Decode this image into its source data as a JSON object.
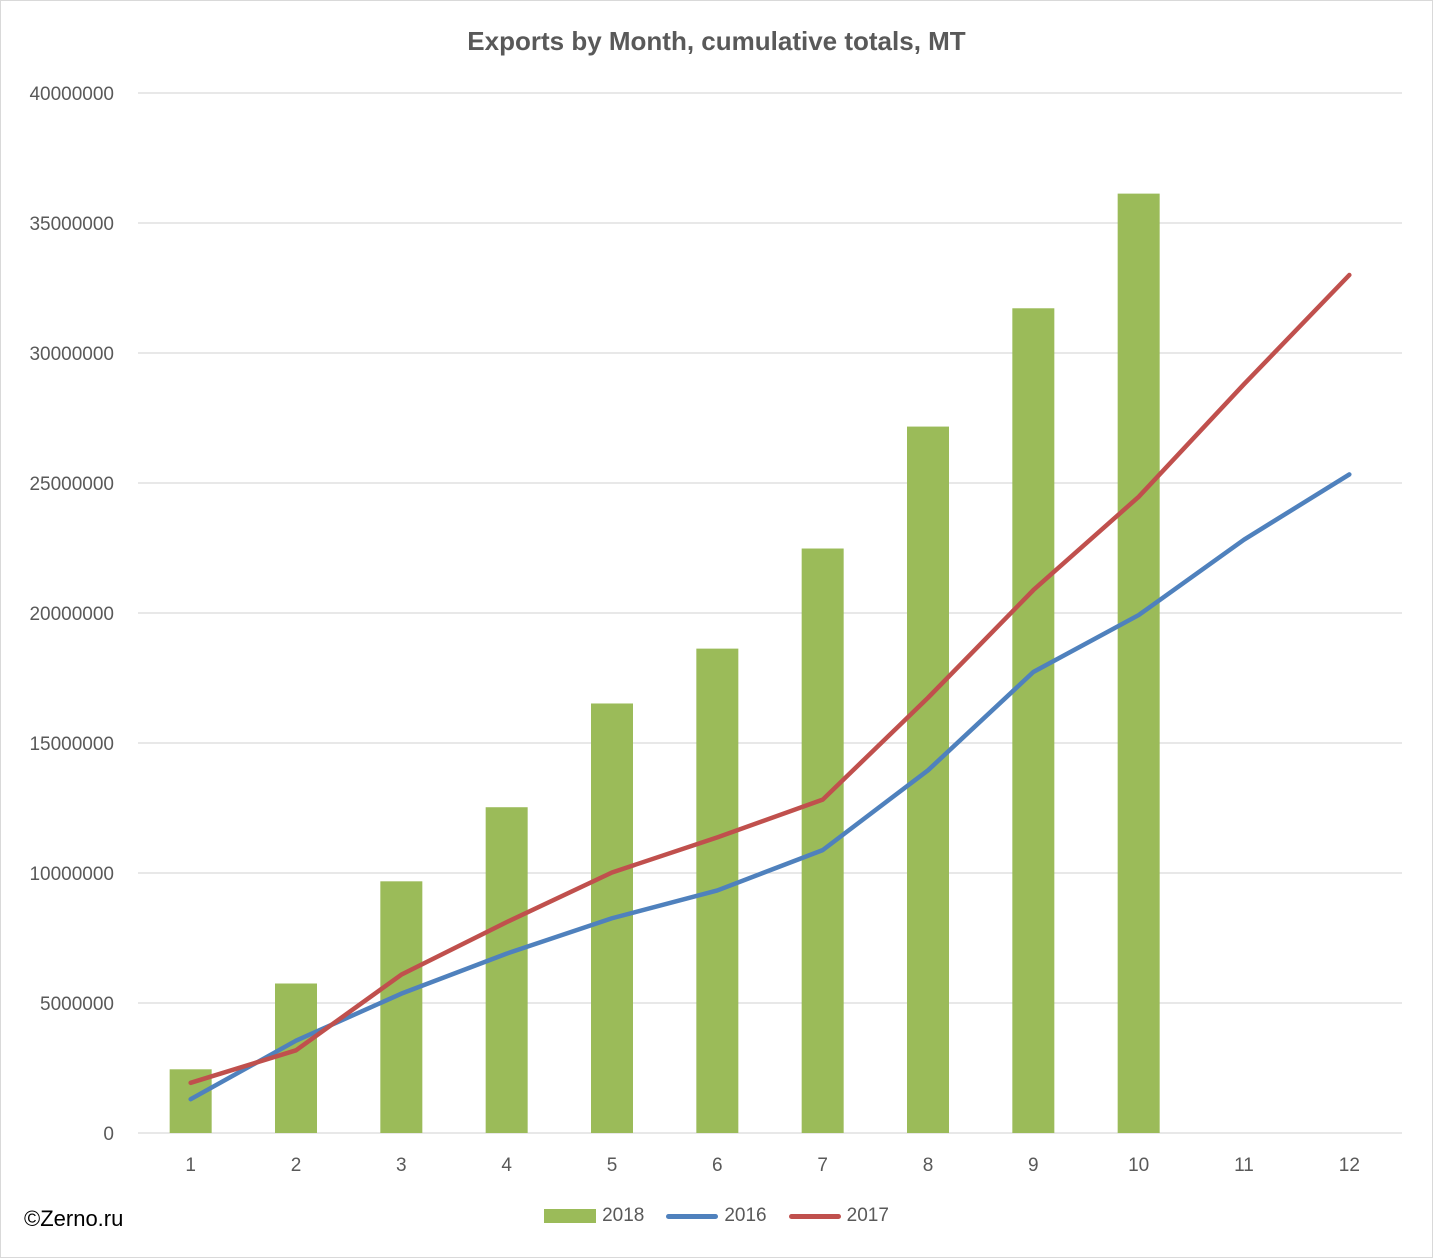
{
  "watermark": "©Zerno.ru",
  "colors": {
    "bar_2018": "#9bbb59",
    "line_2016": "#4f81bd",
    "line_2017": "#c0504d",
    "grid": "#d9d9d9",
    "axis_text": "#595959"
  },
  "chart_data": {
    "type": "bar",
    "title": "Exports by Month, cumulative totals, MT",
    "xlabel": "",
    "ylabel": "",
    "categories": [
      "1",
      "2",
      "3",
      "4",
      "5",
      "6",
      "7",
      "8",
      "9",
      "10",
      "11",
      "12"
    ],
    "ylim": [
      0,
      40000000
    ],
    "yticks": [
      0,
      5000000,
      10000000,
      15000000,
      20000000,
      25000000,
      30000000,
      35000000,
      40000000
    ],
    "grid": true,
    "legend_position": "bottom",
    "series": [
      {
        "name": "2018",
        "type": "bar",
        "values": [
          2450000,
          5750000,
          9680000,
          12530000,
          16520000,
          18630000,
          22480000,
          27170000,
          31720000,
          36130000,
          null,
          null
        ]
      },
      {
        "name": "2016",
        "type": "line",
        "values": [
          1300000,
          3550000,
          5360000,
          6900000,
          8260000,
          9330000,
          10880000,
          13950000,
          17730000,
          19920000,
          22820000,
          25330000
        ]
      },
      {
        "name": "2017",
        "type": "line",
        "values": [
          1930000,
          3180000,
          6090000,
          8110000,
          10020000,
          11370000,
          12820000,
          16740000,
          20880000,
          24470000,
          28800000,
          33000000
        ]
      }
    ]
  }
}
